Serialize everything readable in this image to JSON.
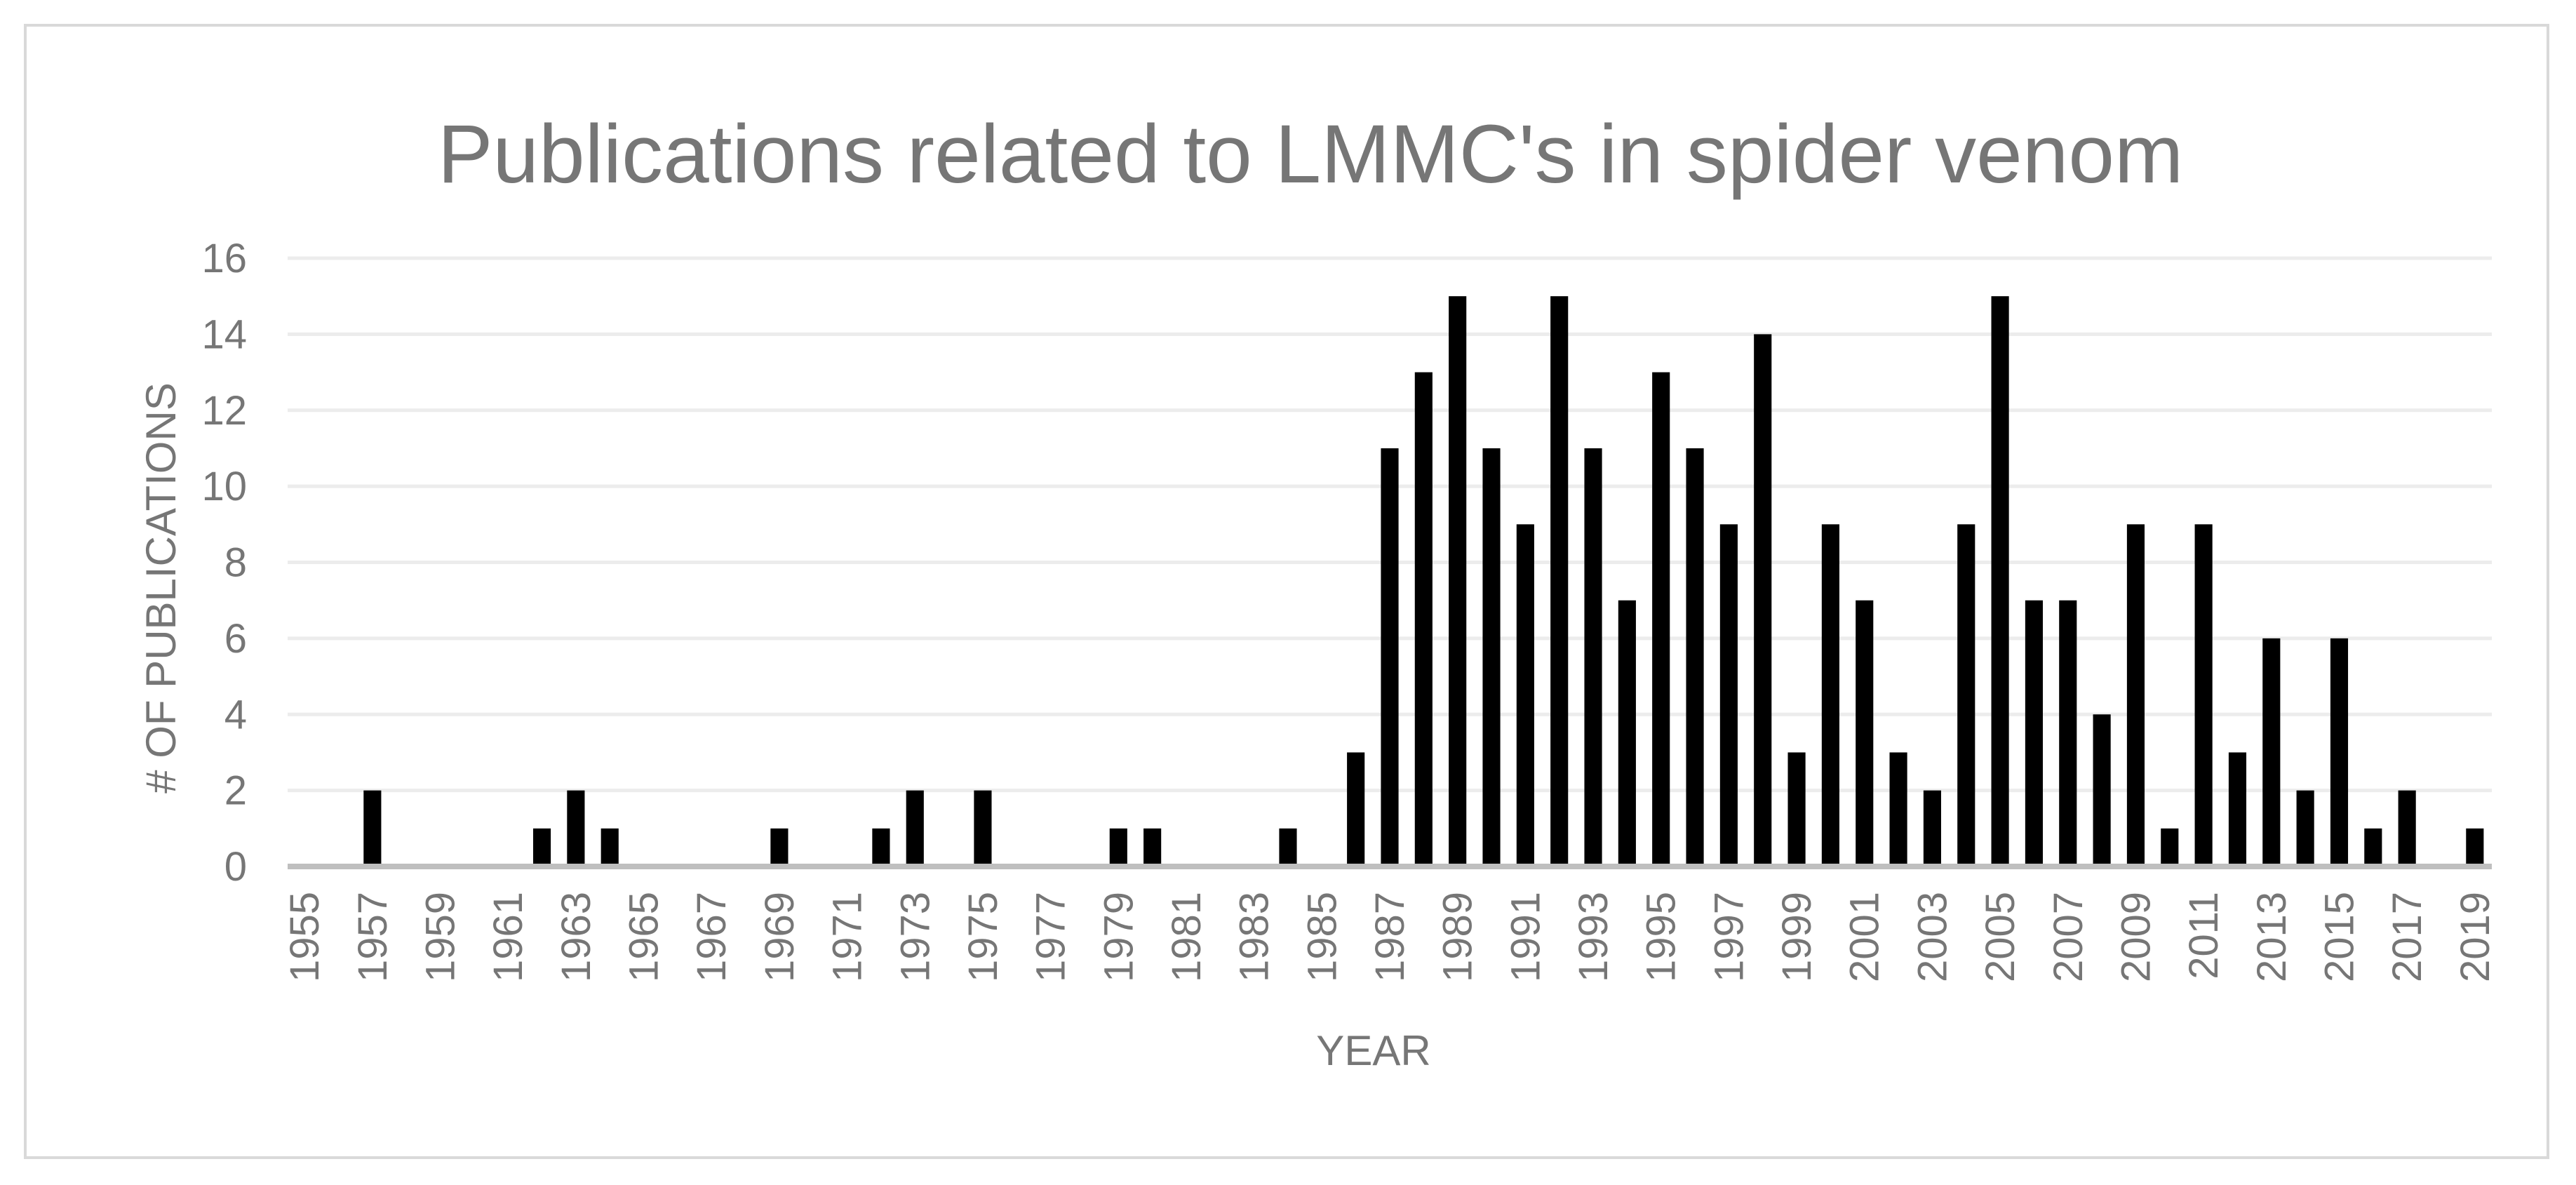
{
  "chart_data": {
    "type": "bar",
    "title": "Publications related to LMMC's in spider venom",
    "xlabel": "YEAR",
    "ylabel": "# OF PUBLICATIONS",
    "ylim": [
      0,
      16
    ],
    "yticks": [
      0,
      2,
      4,
      6,
      8,
      10,
      12,
      14,
      16
    ],
    "grid": true,
    "legend": "none",
    "bar_color": "#000000",
    "categories": [
      "1955",
      "1956",
      "1957",
      "1958",
      "1959",
      "1960",
      "1961",
      "1962",
      "1963",
      "1964",
      "1965",
      "1966",
      "1967",
      "1968",
      "1969",
      "1970",
      "1971",
      "1972",
      "1973",
      "1974",
      "1975",
      "1976",
      "1977",
      "1978",
      "1979",
      "1980",
      "1981",
      "1982",
      "1983",
      "1984",
      "1985",
      "1986",
      "1987",
      "1988",
      "1989",
      "1990",
      "1991",
      "1992",
      "1993",
      "1994",
      "1995",
      "1996",
      "1997",
      "1998",
      "1999",
      "2000",
      "2001",
      "2002",
      "2003",
      "2004",
      "2005",
      "2006",
      "2007",
      "2008",
      "2009",
      "2010",
      "2011",
      "2012",
      "2013",
      "2014",
      "2015",
      "2016",
      "2017",
      "2018",
      "2019"
    ],
    "tick_labels": [
      "1955",
      "1957",
      "1959",
      "1961",
      "1963",
      "1965",
      "1967",
      "1969",
      "1971",
      "1973",
      "1975",
      "1977",
      "1979",
      "1981",
      "1983",
      "1985",
      "1987",
      "1989",
      "1991",
      "1993",
      "1995",
      "1997",
      "1999",
      "2001",
      "2003",
      "2005",
      "2007",
      "2009",
      "2011",
      "2013",
      "2015",
      "2017",
      "2019"
    ],
    "values": [
      0,
      0,
      2,
      0,
      0,
      0,
      0,
      1,
      2,
      1,
      0,
      0,
      0,
      0,
      1,
      0,
      0,
      1,
      2,
      0,
      2,
      0,
      0,
      0,
      1,
      1,
      0,
      0,
      0,
      1,
      0,
      3,
      11,
      13,
      15,
      11,
      9,
      15,
      11,
      7,
      13,
      11,
      9,
      14,
      3,
      9,
      7,
      3,
      2,
      9,
      15,
      7,
      7,
      4,
      9,
      1,
      9,
      3,
      6,
      2,
      6,
      1,
      2,
      0,
      1
    ]
  }
}
